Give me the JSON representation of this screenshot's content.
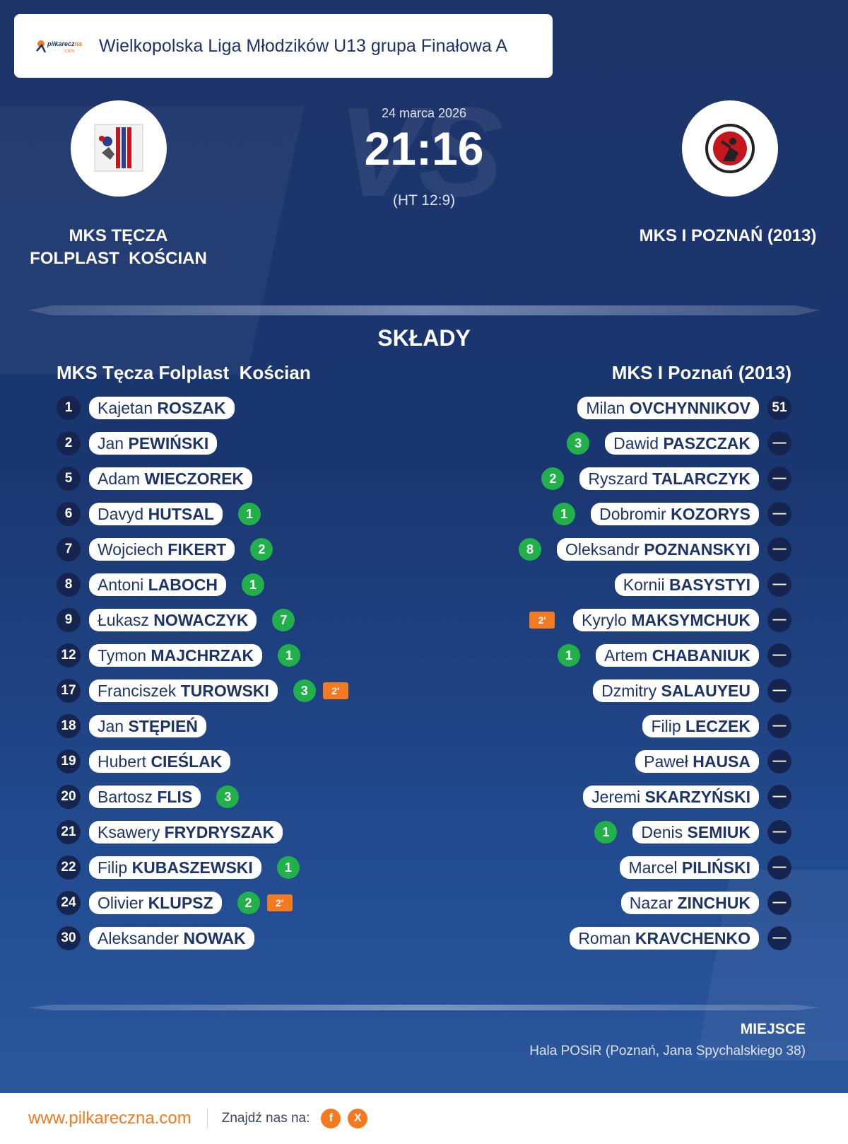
{
  "league": {
    "title": "Wielkopolska Liga Młodzików U13 grupa Finałowa A",
    "logo_text_a": "piłkarecz",
    "logo_text_b": "na",
    "logo_text_c": ".com"
  },
  "match": {
    "date": "24 marca 2026",
    "score": "21:16",
    "halftime": "(HT 12:9)",
    "watermark": "VS"
  },
  "home": {
    "name_line1": "MKS TĘCZA",
    "name_line2": "FOLPLAST  KOŚCIAN",
    "lineup_title": "MKS Tęcza Folplast  Kościan",
    "players": [
      {
        "num": "1",
        "first": "Kajetan",
        "last": "ROSZAK",
        "goals": "",
        "susp": ""
      },
      {
        "num": "2",
        "first": "Jan",
        "last": "PEWIŃSKI",
        "goals": "",
        "susp": ""
      },
      {
        "num": "5",
        "first": "Adam",
        "last": "WIECZOREK",
        "goals": "",
        "susp": ""
      },
      {
        "num": "6",
        "first": "Davyd",
        "last": "HUTSAL",
        "goals": "1",
        "susp": ""
      },
      {
        "num": "7",
        "first": "Wojciech",
        "last": "FIKERT",
        "goals": "2",
        "susp": ""
      },
      {
        "num": "8",
        "first": "Antoni",
        "last": "LABOCH",
        "goals": "1",
        "susp": ""
      },
      {
        "num": "9",
        "first": "Łukasz",
        "last": "NOWACZYK",
        "goals": "7",
        "susp": ""
      },
      {
        "num": "12",
        "first": "Tymon",
        "last": "MAJCHRZAK",
        "goals": "1",
        "susp": ""
      },
      {
        "num": "17",
        "first": "Franciszek",
        "last": "TUROWSKI",
        "goals": "3",
        "susp": "2'"
      },
      {
        "num": "18",
        "first": "Jan",
        "last": "STĘPIEŃ",
        "goals": "",
        "susp": ""
      },
      {
        "num": "19",
        "first": "Hubert",
        "last": "CIEŚLAK",
        "goals": "",
        "susp": ""
      },
      {
        "num": "20",
        "first": "Bartosz",
        "last": "FLIS",
        "goals": "3",
        "susp": ""
      },
      {
        "num": "21",
        "first": "Ksawery",
        "last": "FRYDRYSZAK",
        "goals": "",
        "susp": ""
      },
      {
        "num": "22",
        "first": "Filip",
        "last": "KUBASZEWSKI",
        "goals": "1",
        "susp": ""
      },
      {
        "num": "24",
        "first": "Olivier",
        "last": "KLUPSZ",
        "goals": "2",
        "susp": "2'"
      },
      {
        "num": "30",
        "first": "Aleksander",
        "last": "NOWAK",
        "goals": "",
        "susp": ""
      }
    ]
  },
  "away": {
    "name": "MKS I POZNAŃ (2013)",
    "lineup_title": "MKS I Poznań (2013)",
    "players": [
      {
        "num": "51",
        "first": "Milan",
        "last": "OVCHYNNIKOV",
        "goals": "",
        "susp": ""
      },
      {
        "num": "—",
        "first": "Dawid",
        "last": "PASZCZAK",
        "goals": "3",
        "susp": ""
      },
      {
        "num": "—",
        "first": "Ryszard",
        "last": "TALARCZYK",
        "goals": "2",
        "susp": ""
      },
      {
        "num": "—",
        "first": "Dobromir",
        "last": "KOZORYS",
        "goals": "1",
        "susp": ""
      },
      {
        "num": "—",
        "first": "Oleksandr",
        "last": "POZNANSKYI",
        "goals": "8",
        "susp": ""
      },
      {
        "num": "—",
        "first": "Kornii",
        "last": "BASYSTYI",
        "goals": "",
        "susp": ""
      },
      {
        "num": "—",
        "first": "Kyrylo",
        "last": "MAKSYMCHUK",
        "goals": "",
        "susp": "2'"
      },
      {
        "num": "—",
        "first": "Artem",
        "last": "CHABANIUK",
        "goals": "1",
        "susp": ""
      },
      {
        "num": "—",
        "first": "Dzmitry",
        "last": "SALAUYEU",
        "goals": "",
        "susp": ""
      },
      {
        "num": "—",
        "first": "Filip",
        "last": "LECZEK",
        "goals": "",
        "susp": ""
      },
      {
        "num": "—",
        "first": "Paweł",
        "last": "HAUSA",
        "goals": "",
        "susp": ""
      },
      {
        "num": "—",
        "first": "Jeremi",
        "last": "SKARZYŃSKI",
        "goals": "",
        "susp": ""
      },
      {
        "num": "—",
        "first": "Denis",
        "last": "SEMIUK",
        "goals": "1",
        "susp": ""
      },
      {
        "num": "—",
        "first": "Marcel",
        "last": "PILIŃSKI",
        "goals": "",
        "susp": ""
      },
      {
        "num": "—",
        "first": "Nazar",
        "last": "ZINCHUK",
        "goals": "",
        "susp": ""
      },
      {
        "num": "—",
        "first": "Roman",
        "last": "KRAVCHENKO",
        "goals": "",
        "susp": ""
      }
    ]
  },
  "section_title": "SKŁADY",
  "venue": {
    "label": "MIEJSCE",
    "name": "Hala POSiR (Poznań, Jana Spychalskiego 38)"
  },
  "footer": {
    "url": "www.pilkareczna.com",
    "find_us": "Znajdź nas na:",
    "facebook_icon": "f",
    "x_icon": "X"
  },
  "colors": {
    "background": "#1d3468",
    "goal_badge": "#22b04b",
    "suspension_badge": "#f47a20",
    "brand_orange": "#f47a20"
  }
}
